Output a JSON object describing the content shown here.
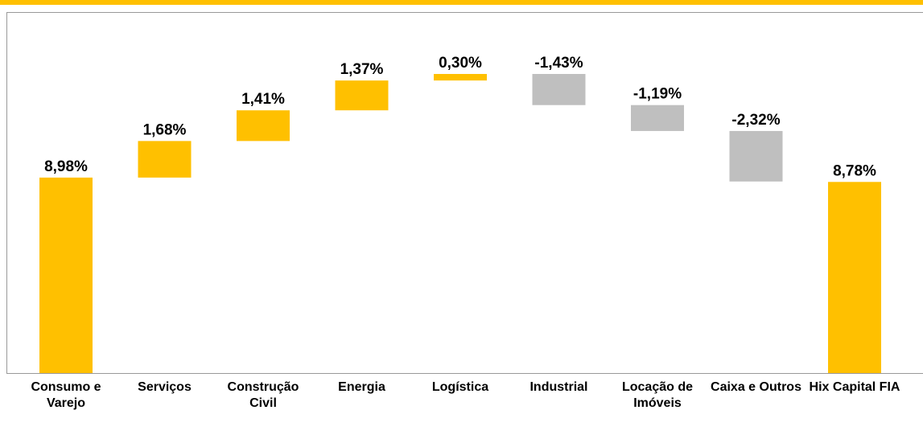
{
  "chart_data": {
    "type": "waterfall",
    "categories": [
      "Consumo e Varejo",
      "Serviços",
      "Construção Civil",
      "Energia",
      "Logística",
      "Industrial",
      "Locação de Imóveis",
      "Caixa e Outros",
      "Hix Capital FIA"
    ],
    "values": [
      8.98,
      1.68,
      1.41,
      1.37,
      0.3,
      -1.43,
      -1.19,
      -2.32,
      8.78
    ],
    "value_labels": [
      "8,98%",
      "1,68%",
      "1,41%",
      "1,37%",
      "0,30%",
      "-1,43%",
      "-1,19%",
      "-2,32%",
      "8,78%"
    ],
    "totals": [
      0,
      8
    ],
    "positive_color": "#FFC000",
    "negative_color": "#BFBFBF"
  }
}
